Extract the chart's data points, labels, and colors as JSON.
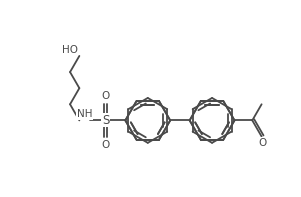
{
  "background_color": "#ffffff",
  "line_color": "#4a4a4a",
  "text_color": "#4a4a4a",
  "lw": 1.3,
  "fs": 7.5,
  "figsize": [
    3.01,
    1.97
  ],
  "dpi": 100,
  "xlim": [
    -0.5,
    10.5
  ],
  "ylim": [
    -0.5,
    6.5
  ]
}
